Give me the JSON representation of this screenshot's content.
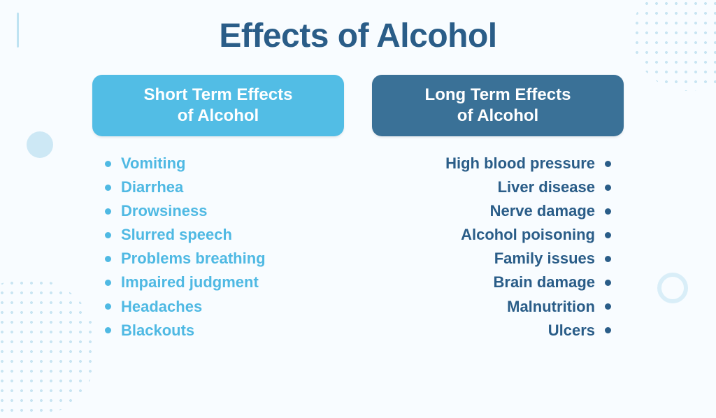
{
  "title": "Effects of Alcohol",
  "colors": {
    "title": "#2a5d88",
    "header_light_bg": "#52bde5",
    "header_dark_bg": "#3a7197",
    "header_text": "#ffffff",
    "short_text": "#4fb9e3",
    "long_text": "#2a5d88",
    "background": "#f8fcff"
  },
  "typography": {
    "title_fontsize": 48,
    "header_fontsize": 24,
    "item_fontsize": 22,
    "font_family": "Segoe UI"
  },
  "short": {
    "header_line1": "Short Term Effects",
    "header_line2": "of Alcohol",
    "items": [
      "Vomiting",
      "Diarrhea",
      "Drowsiness",
      "Slurred speech",
      "Problems breathing",
      "Impaired judgment",
      "Headaches",
      "Blackouts"
    ]
  },
  "long": {
    "header_line1": "Long Term Effects",
    "header_line2": "of Alcohol",
    "items": [
      "High blood pressure",
      "Liver disease",
      "Nerve damage",
      "Alcohol poisoning",
      "Family issues",
      "Brain damage",
      "Malnutrition",
      "Ulcers"
    ]
  }
}
